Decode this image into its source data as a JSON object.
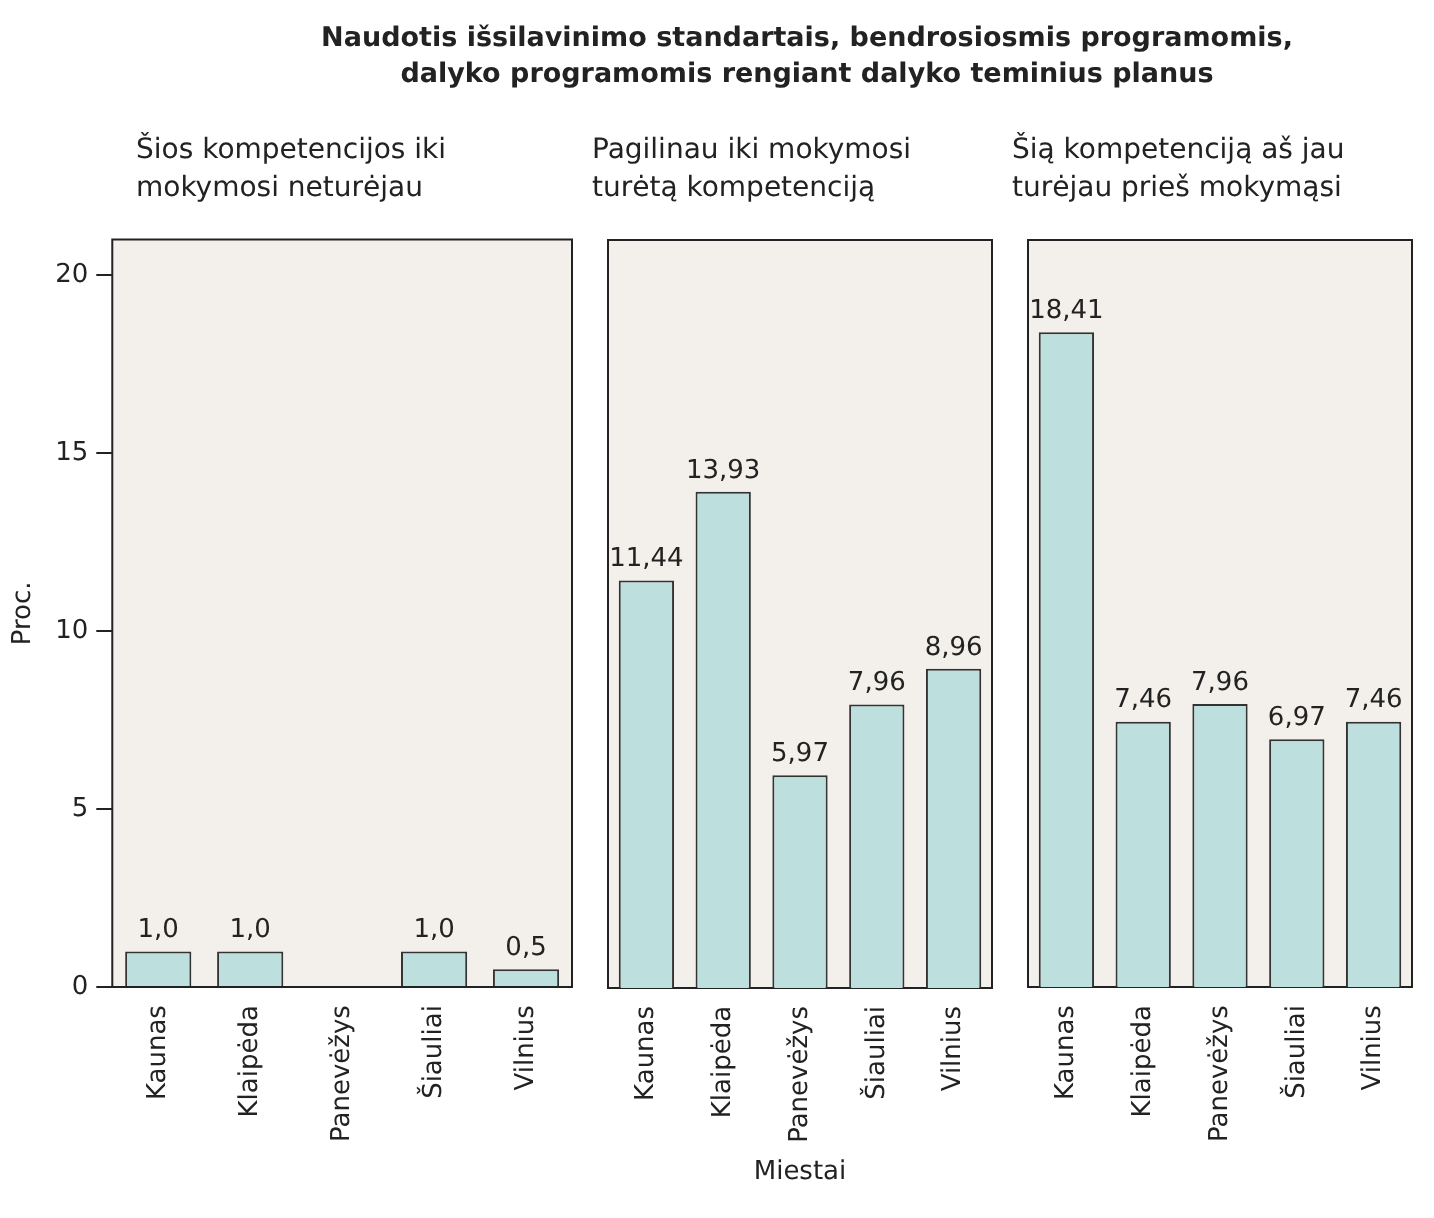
{
  "chart_data": [
    {
      "type": "bar",
      "title": "Šios kompetencijos iki mokymosi neturėjau",
      "ylabel": "Proc.",
      "annotations": [
        "Naudotis išsilavinimo standartais, bendrosiosmis programomis, dalyko programomis rengiant dalyko teminius planus"
      ],
      "categories": [
        "Kaunas",
        "Klaipėda",
        "Panevėžys",
        "Šiauliai",
        "Vilnius"
      ],
      "values": [
        1.0,
        1.0,
        null,
        1.0,
        0.5
      ],
      "value_labels": [
        "1,0",
        "1,0",
        null,
        "1,0",
        "0,5"
      ],
      "color": "#bddfdd",
      "ylim": [
        0,
        21
      ],
      "yticks": [
        0,
        5,
        10,
        15,
        20
      ],
      "grid": false
    },
    {
      "type": "bar",
      "title": "Pagilinau iki mokymosi turėtą kompetenciją",
      "xlabel": "Miestai",
      "categories": [
        "Kaunas",
        "Klaipėda",
        "Panevėžys",
        "Šiauliai",
        "Vilnius"
      ],
      "values": [
        11.44,
        13.93,
        5.97,
        7.96,
        8.96
      ],
      "value_labels": [
        "11,44",
        "13,93",
        "5,97",
        "7,96",
        "8,96"
      ],
      "color": "#bddfdd",
      "ylim": [
        0,
        21
      ],
      "yticks": [
        0,
        5,
        10,
        15,
        20
      ],
      "grid": false,
      "tick_labels": "x"
    },
    {
      "type": "bar",
      "title": "Šią kompetenciją aš jau turėjau prieš mokymąsi",
      "categories": [
        "Kaunas",
        "Klaipėda",
        "Panevėžys",
        "Šiauliai",
        "Vilnius"
      ],
      "values": [
        18.41,
        7.46,
        7.96,
        6.97,
        7.46
      ],
      "value_labels": [
        "18,41",
        "7,46",
        "7,96",
        "6,97",
        "7,46"
      ],
      "color": "#bddfdd",
      "ylim": [
        0,
        21
      ],
      "yticks": [
        0,
        5,
        10,
        15,
        20
      ],
      "grid": false,
      "tick_labels": "x"
    }
  ]
}
